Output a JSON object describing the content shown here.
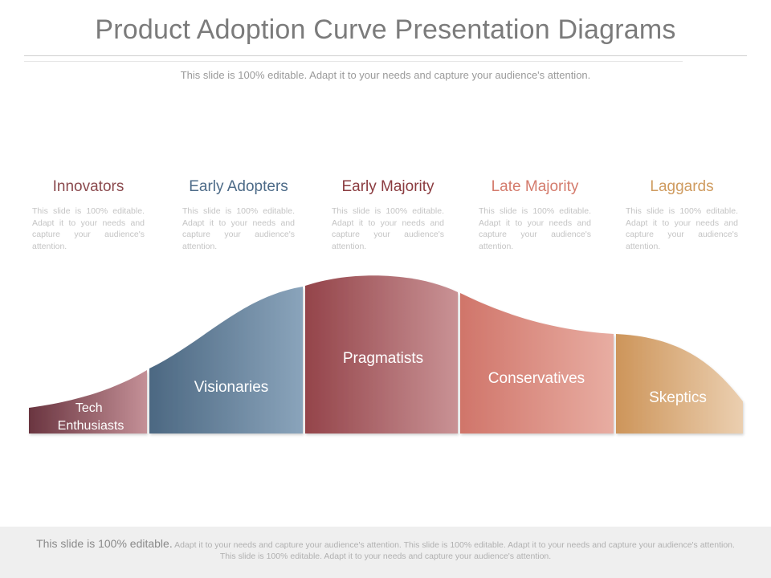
{
  "header": {
    "title": "Product Adoption Curve Presentation Diagrams",
    "subtitle": "This slide is 100% editable. Adapt it to your needs and capture your audience's attention."
  },
  "stages": [
    {
      "title": "Innovators",
      "color": "#8b4a4e",
      "description": "This slide is 100% editable. Adapt it to your needs and capture your audience's attention.",
      "segment_label": "Tech Enthusiasts",
      "segment_colors": [
        "#6a3540",
        "#c49097"
      ]
    },
    {
      "title": "Early Adopters",
      "color": "#4d6b88",
      "description": "This slide is 100% editable. Adapt it to your needs and capture your audience's attention.",
      "segment_label": "Visionaries",
      "segment_colors": [
        "#4c6882",
        "#8aa4bb"
      ]
    },
    {
      "title": "Early Majority",
      "color": "#8b3c40",
      "description": "This slide is 100% editable. Adapt it to your needs and capture your audience's attention.",
      "segment_label": "Pragmatists",
      "segment_colors": [
        "#94444a",
        "#c99295"
      ]
    },
    {
      "title": "Late Majority",
      "color": "#d47b6c",
      "description": "This slide is 100% editable. Adapt it to your needs and capture your audience's attention.",
      "segment_label": "Conservatives",
      "segment_colors": [
        "#d0756a",
        "#e8ada2"
      ]
    },
    {
      "title": "Laggards",
      "color": "#cf9b5f",
      "description": "This slide is 100% editable. Adapt it to your needs and capture your audience's attention.",
      "segment_label": "Skeptics",
      "segment_colors": [
        "#cd955a",
        "#ebcfb0"
      ]
    }
  ],
  "footer": {
    "lead": "This slide is 100% editable.",
    "text": "Adapt it to your needs and capture your audience's attention. This slide is 100% editable. Adapt it to your needs and capture your audience's attention. This slide is 100% editable. Adapt it to your needs and capture your audience's attention."
  }
}
